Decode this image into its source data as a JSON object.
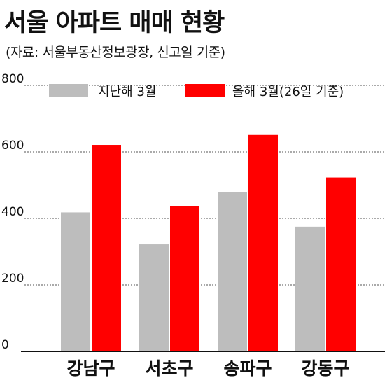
{
  "title": "서울 아파트 매매 현황",
  "subtitle": "(자료: 서울부동산정보광장, 신고일 기준)",
  "colors": {
    "last_year": "#bdbdbd",
    "this_year": "#ff0000",
    "grid": "#555555",
    "axis": "#111111"
  },
  "chart_data": {
    "type": "bar",
    "categories": [
      "강남구",
      "서초구",
      "송파구",
      "강동구"
    ],
    "series": [
      {
        "name": "지난해 3월",
        "values": [
          418,
          322,
          480,
          375
        ]
      },
      {
        "name": "올해 3월(26일 기준)",
        "values": [
          621,
          436,
          651,
          523
        ]
      }
    ],
    "yticks": [
      "0",
      "200",
      "400",
      "600",
      "800"
    ],
    "ylim": [
      0,
      800
    ],
    "grid": true,
    "legend_position": "top"
  }
}
